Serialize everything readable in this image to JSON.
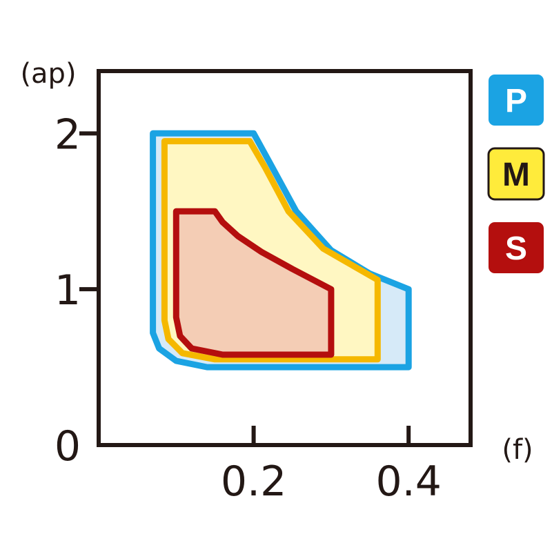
{
  "chart_data": {
    "type": "area",
    "xlabel": "(f)",
    "ylabel": "(ap)",
    "xlim": [
      0,
      0.48
    ],
    "ylim": [
      0,
      2.4
    ],
    "x_ticks": [
      {
        "value": 0.2,
        "label": "0.2"
      },
      {
        "value": 0.4,
        "label": "0.4"
      }
    ],
    "y_ticks": [
      {
        "value": 0,
        "label": "0"
      },
      {
        "value": 1,
        "label": "1"
      },
      {
        "value": 2,
        "label": "2"
      }
    ],
    "grid": false,
    "legend_position": "right",
    "series": [
      {
        "name": "P",
        "fill": "#D6EAF8",
        "stroke": "#1BA3E3",
        "legend_fill": "#1BA3E3",
        "legend_text": "#ffffff",
        "points": [
          [
            0.07,
            0.85
          ],
          [
            0.07,
            2.0
          ],
          [
            0.2,
            2.0
          ],
          [
            0.22,
            1.82
          ],
          [
            0.255,
            1.5
          ],
          [
            0.3,
            1.25
          ],
          [
            0.35,
            1.1
          ],
          [
            0.4,
            1.0
          ],
          [
            0.4,
            0.5
          ],
          [
            0.14,
            0.5
          ],
          [
            0.1,
            0.54
          ],
          [
            0.078,
            0.62
          ],
          [
            0.07,
            0.72
          ]
        ]
      },
      {
        "name": "M",
        "fill": "#FFF7C2",
        "stroke": "#F5B800",
        "legend_fill": "#FFEB3B",
        "legend_text": "#231815",
        "points": [
          [
            0.085,
            0.8
          ],
          [
            0.085,
            1.95
          ],
          [
            0.195,
            1.95
          ],
          [
            0.215,
            1.78
          ],
          [
            0.245,
            1.5
          ],
          [
            0.29,
            1.26
          ],
          [
            0.36,
            1.06
          ],
          [
            0.36,
            0.55
          ],
          [
            0.15,
            0.55
          ],
          [
            0.108,
            0.59
          ],
          [
            0.09,
            0.68
          ]
        ]
      },
      {
        "name": "S",
        "fill": "#F4CDB5",
        "stroke": "#B40F0E",
        "legend_fill": "#B40F0E",
        "legend_text": "#ffffff",
        "points": [
          [
            0.1,
            0.82
          ],
          [
            0.1,
            1.5
          ],
          [
            0.15,
            1.5
          ],
          [
            0.16,
            1.43
          ],
          [
            0.18,
            1.34
          ],
          [
            0.21,
            1.24
          ],
          [
            0.25,
            1.13
          ],
          [
            0.3,
            1.0
          ],
          [
            0.3,
            0.58
          ],
          [
            0.16,
            0.58
          ],
          [
            0.12,
            0.62
          ],
          [
            0.105,
            0.7
          ]
        ]
      }
    ]
  }
}
